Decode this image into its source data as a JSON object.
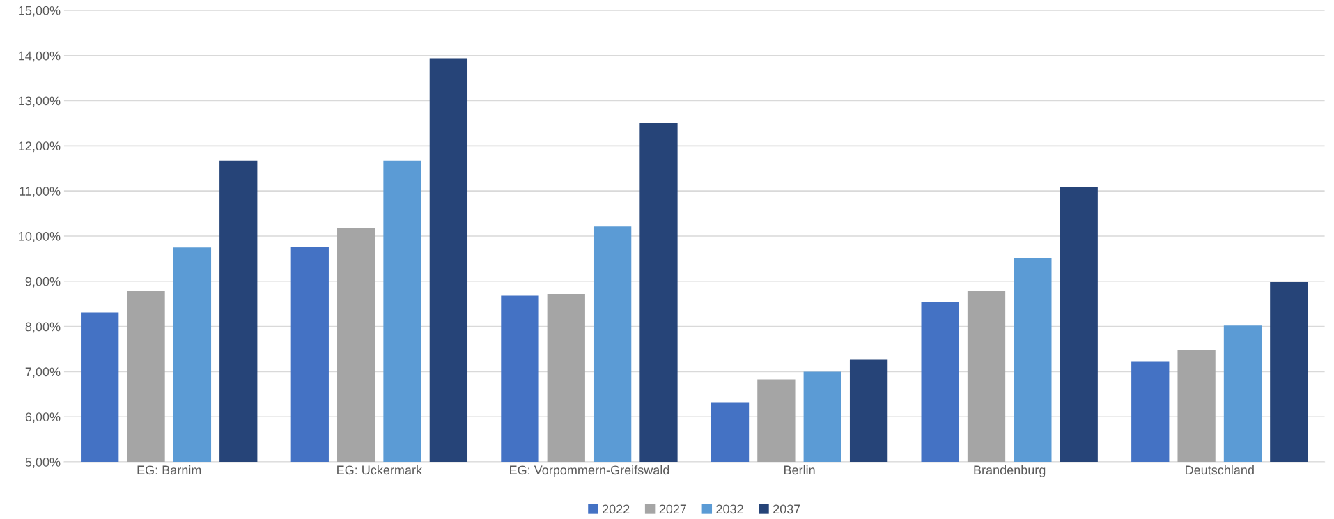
{
  "chart_data": {
    "type": "bar",
    "categories": [
      "EG: Barnim",
      "EG: Uckermark",
      "EG: Vorpommern-Greifswald",
      "Berlin",
      "Brandenburg",
      "Deutschland"
    ],
    "series": [
      {
        "name": "2022",
        "color": "#4472c4",
        "values": [
          8.31,
          9.77,
          8.68,
          6.32,
          8.54,
          7.23
        ]
      },
      {
        "name": "2027",
        "color": "#a5a5a5",
        "values": [
          8.79,
          10.18,
          8.72,
          6.83,
          8.79,
          7.48
        ]
      },
      {
        "name": "2032",
        "color": "#5b9bd5",
        "values": [
          9.75,
          11.67,
          10.21,
          7.0,
          9.51,
          8.02
        ]
      },
      {
        "name": "2037",
        "color": "#264478",
        "values": [
          11.67,
          13.94,
          12.5,
          7.26,
          11.09,
          8.98
        ]
      }
    ],
    "ylim": [
      5,
      15
    ],
    "yticks": [
      {
        "value": 5,
        "label": "5,00%"
      },
      {
        "value": 6,
        "label": "6,00%"
      },
      {
        "value": 7,
        "label": "7,00%"
      },
      {
        "value": 8,
        "label": "8,00%"
      },
      {
        "value": 9,
        "label": "9,00%"
      },
      {
        "value": 10,
        "label": "10,00%"
      },
      {
        "value": 11,
        "label": "11,00%"
      },
      {
        "value": 12,
        "label": "12,00%"
      },
      {
        "value": 13,
        "label": "13,00%"
      },
      {
        "value": 14,
        "label": "14,00%"
      },
      {
        "value": 15,
        "label": "15,00%"
      }
    ],
    "grid": "y",
    "legend": "bottom"
  }
}
